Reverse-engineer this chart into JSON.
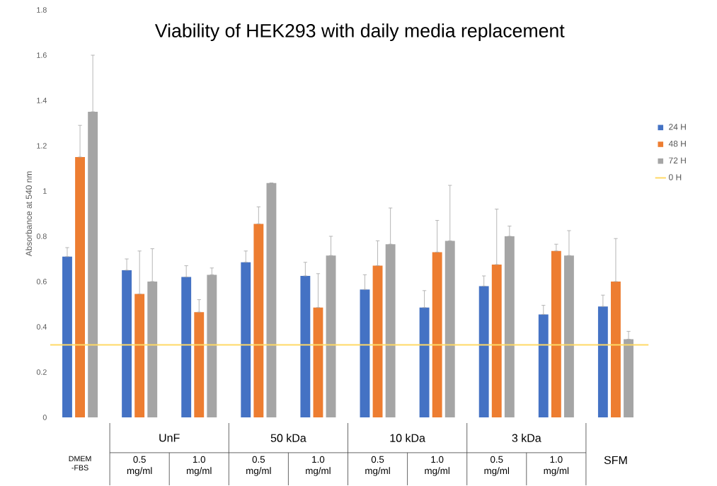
{
  "chart_data": {
    "type": "bar",
    "title": "Viability of HEK293 with daily media replacement",
    "ylabel": "Absorbance at 540 nm",
    "categories": [
      "DMEM -FBS",
      "0.5 mg/ml",
      "1.0 mg/ml",
      "0.5 mg/ml",
      "1.0 mg/ml",
      "0.5 mg/ml",
      "1.0 mg/ml",
      "0.5 mg/ml",
      "1.0 mg/ml",
      "SFM"
    ],
    "annotations": [
      "UnF",
      "50 kDa",
      "10 kDa",
      "3 kDa"
    ],
    "series": [
      {
        "name": "24 H",
        "color": "#4472c4",
        "values": [
          0.71,
          0.65,
          0.62,
          0.685,
          0.625,
          0.565,
          0.485,
          0.58,
          0.455,
          0.49
        ],
        "errors": [
          [
            0.71,
            0.75
          ],
          [
            0.65,
            0.7
          ],
          [
            0.62,
            0.67
          ],
          [
            0.685,
            0.735
          ],
          [
            0.625,
            0.685
          ],
          [
            0.565,
            0.63
          ],
          [
            0.485,
            0.56
          ],
          [
            0.58,
            0.625
          ],
          [
            0.455,
            0.495
          ],
          [
            0.49,
            0.54
          ]
        ]
      },
      {
        "name": "48 H",
        "color": "#ed7d31",
        "values": [
          1.15,
          0.545,
          0.465,
          0.855,
          0.485,
          0.67,
          0.73,
          0.675,
          0.735,
          0.6
        ],
        "errors": [
          [
            1.15,
            1.29
          ],
          [
            0.545,
            0.735
          ],
          [
            0.465,
            0.52
          ],
          [
            0.855,
            0.93
          ],
          [
            0.485,
            0.635
          ],
          [
            0.67,
            0.78
          ],
          [
            0.73,
            0.87
          ],
          [
            0.675,
            0.92
          ],
          [
            0.735,
            0.765
          ],
          [
            0.6,
            0.79
          ]
        ]
      },
      {
        "name": "72 H",
        "color": "#a5a5a5",
        "values": [
          1.35,
          0.6,
          0.63,
          1.035,
          0.715,
          0.765,
          0.78,
          0.8,
          0.715,
          0.345
        ],
        "errors": [
          [
            1.35,
            1.6
          ],
          [
            0.6,
            0.745
          ],
          [
            0.63,
            0.66
          ],
          null,
          [
            0.715,
            0.8
          ],
          [
            0.765,
            0.925
          ],
          [
            0.78,
            1.025
          ],
          [
            0.8,
            0.845
          ],
          [
            0.715,
            0.825
          ],
          [
            0.345,
            0.38
          ]
        ]
      }
    ],
    "ref_lines": [
      {
        "axis": "y",
        "value": 0.32,
        "label": "0 H",
        "color": "#ffd966"
      }
    ],
    "ylim": [
      0,
      1.8
    ],
    "yticks": [
      0,
      0.2,
      0.4,
      0.6,
      0.8,
      1,
      1.2,
      1.4,
      1.6,
      1.8
    ],
    "grid": false,
    "legend": "right"
  }
}
